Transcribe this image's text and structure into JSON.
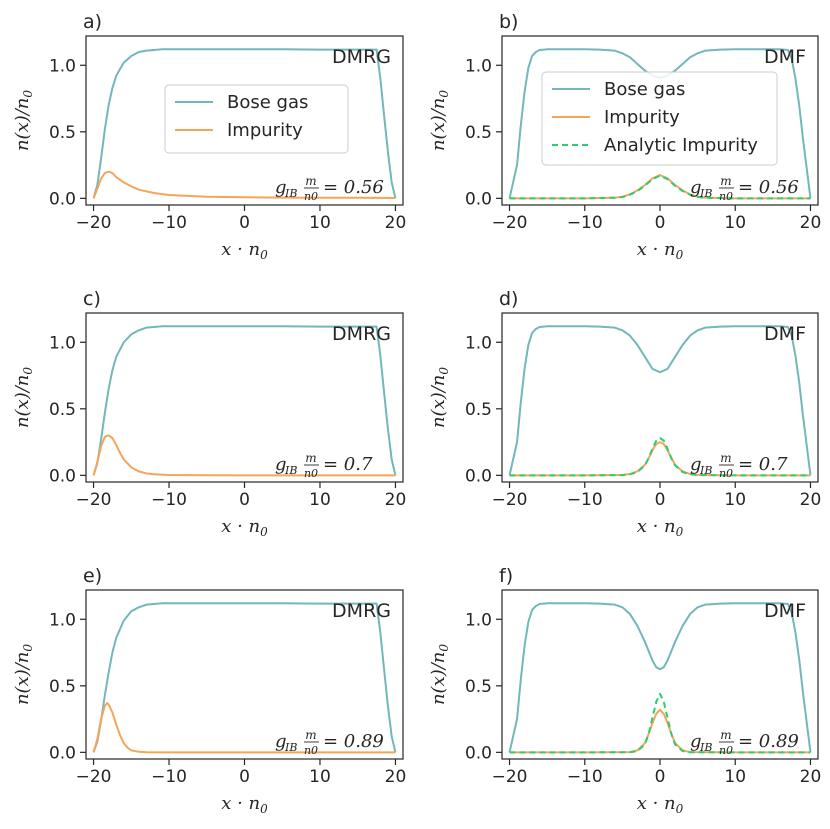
{
  "colors": {
    "bose": "#72b7b9",
    "impurity": "#f5a55a",
    "analytic": "#2ecc71",
    "axis": "#262626",
    "text": "#262626"
  },
  "chart_data": [
    {
      "type": "line",
      "panel_label": "a)",
      "method": "DMRG",
      "coupling_label": "g_IB m/n0 = 0.56",
      "coupling_prefix": "g",
      "coupling_sub": "IB",
      "coupling_frac_num": "m",
      "coupling_frac_den": "n0",
      "coupling_value": "= 0.56",
      "xlabel": "x · n0",
      "ylabel": "n(x)/n0",
      "xlim": [
        -21,
        21
      ],
      "ylim": [
        -0.05,
        1.22
      ],
      "xticks": [
        -20,
        -10,
        0,
        10,
        20
      ],
      "xtick_labels": [
        "−20",
        "−10",
        "0",
        "10",
        "20"
      ],
      "yticks": [
        0.0,
        0.5,
        1.0
      ],
      "ytick_labels": [
        "0.0",
        "0.5",
        "1.0"
      ],
      "legend": [
        "Bose gas",
        "Impurity"
      ],
      "legend_position": "center",
      "series": [
        {
          "name": "Bose gas",
          "x": [
            -20,
            -19.5,
            -19,
            -18.5,
            -18,
            -17.5,
            -17,
            -16,
            -15,
            -14,
            -13,
            -12,
            -11,
            -10,
            -8,
            -5,
            0,
            5,
            10,
            12,
            14,
            16,
            17,
            17.5,
            18,
            18.5,
            19,
            19.5,
            20
          ],
          "y": [
            0,
            0.1,
            0.3,
            0.52,
            0.7,
            0.83,
            0.92,
            1.02,
            1.07,
            1.1,
            1.11,
            1.115,
            1.12,
            1.12,
            1.12,
            1.12,
            1.12,
            1.12,
            1.118,
            1.118,
            1.118,
            1.118,
            1.118,
            1.118,
            0.9,
            0.62,
            0.35,
            0.12,
            0
          ]
        },
        {
          "name": "Impurity",
          "x": [
            -20,
            -19.5,
            -19,
            -18.5,
            -18,
            -17.5,
            -17,
            -16,
            -15,
            -14,
            -12,
            -10,
            -5,
            0,
            5,
            10,
            15,
            20
          ],
          "y": [
            0,
            0.07,
            0.15,
            0.19,
            0.2,
            0.19,
            0.16,
            0.12,
            0.09,
            0.065,
            0.04,
            0.025,
            0.012,
            0.008,
            0.005,
            0.004,
            0.004,
            0.003
          ]
        }
      ]
    },
    {
      "type": "line",
      "panel_label": "b)",
      "method": "DMF",
      "coupling_label": "g_IB m/n0 = 0.56",
      "coupling_prefix": "g",
      "coupling_sub": "IB",
      "coupling_frac_num": "m",
      "coupling_frac_den": "n0",
      "coupling_value": "= 0.56",
      "xlabel": "x · n0",
      "ylabel": "n(x)/n0",
      "xlim": [
        -21,
        21
      ],
      "ylim": [
        -0.05,
        1.22
      ],
      "xticks": [
        -20,
        -10,
        0,
        10,
        20
      ],
      "xtick_labels": [
        "−20",
        "−10",
        "0",
        "10",
        "20"
      ],
      "yticks": [
        0.0,
        0.5,
        1.0
      ],
      "ytick_labels": [
        "0.0",
        "0.5",
        "1.0"
      ],
      "legend": [
        "Bose gas",
        "Impurity",
        "Analytic Impurity"
      ],
      "legend_position": "top-right",
      "series": [
        {
          "name": "Bose gas",
          "x": [
            -20,
            -19,
            -18.5,
            -18,
            -17.5,
            -17,
            -16.5,
            -16,
            -15,
            -13,
            -10,
            -8,
            -6,
            -5,
            -4,
            -3,
            -2,
            -1,
            0,
            1,
            2,
            3,
            4,
            5,
            6,
            8,
            10,
            13,
            15,
            16,
            17,
            17.5,
            18,
            18.5,
            19,
            20
          ],
          "y": [
            0,
            0.25,
            0.55,
            0.8,
            0.98,
            1.07,
            1.1,
            1.115,
            1.12,
            1.12,
            1.12,
            1.118,
            1.11,
            1.09,
            1.06,
            1.01,
            0.96,
            0.92,
            0.905,
            0.92,
            0.96,
            1.01,
            1.06,
            1.09,
            1.11,
            1.118,
            1.12,
            1.12,
            1.12,
            1.12,
            1.115,
            1.05,
            0.9,
            0.7,
            0.45,
            0
          ]
        },
        {
          "name": "Impurity",
          "x": [
            -20,
            -10,
            -6,
            -5,
            -4,
            -3,
            -2,
            -1,
            0,
            1,
            2,
            3,
            4,
            5,
            6,
            10,
            20
          ],
          "y": [
            0,
            0,
            0.005,
            0.012,
            0.03,
            0.06,
            0.1,
            0.15,
            0.175,
            0.15,
            0.1,
            0.06,
            0.03,
            0.012,
            0.005,
            0,
            0
          ]
        },
        {
          "name": "Analytic Impurity",
          "x": [
            -20,
            -10,
            -6,
            -5,
            -4,
            -3,
            -2,
            -1,
            0,
            1,
            2,
            3,
            4,
            5,
            6,
            10,
            20
          ],
          "y": [
            0,
            0,
            0.004,
            0.01,
            0.027,
            0.055,
            0.095,
            0.145,
            0.17,
            0.145,
            0.095,
            0.055,
            0.027,
            0.01,
            0.004,
            0,
            0
          ]
        }
      ]
    },
    {
      "type": "line",
      "panel_label": "c)",
      "method": "DMRG",
      "coupling_label": "g_IB m/n0 = 0.7",
      "coupling_prefix": "g",
      "coupling_sub": "IB",
      "coupling_frac_num": "m",
      "coupling_frac_den": "n0",
      "coupling_value": "= 0.7",
      "xlabel": "x · n0",
      "ylabel": "n(x)/n0",
      "xlim": [
        -21,
        21
      ],
      "ylim": [
        -0.05,
        1.22
      ],
      "xticks": [
        -20,
        -10,
        0,
        10,
        20
      ],
      "xtick_labels": [
        "−20",
        "−10",
        "0",
        "10",
        "20"
      ],
      "yticks": [
        0.0,
        0.5,
        1.0
      ],
      "ytick_labels": [
        "0.0",
        "0.5",
        "1.0"
      ],
      "legend": [],
      "series": [
        {
          "name": "Bose gas",
          "x": [
            -20,
            -19.5,
            -19,
            -18.5,
            -18,
            -17.5,
            -17,
            -16,
            -15,
            -14,
            -13,
            -12,
            -11,
            -10,
            -8,
            -5,
            0,
            5,
            10,
            12,
            14,
            16,
            17,
            17.5,
            18,
            18.5,
            19,
            19.5,
            20
          ],
          "y": [
            0,
            0.09,
            0.27,
            0.47,
            0.65,
            0.79,
            0.89,
            1.0,
            1.06,
            1.09,
            1.11,
            1.115,
            1.12,
            1.12,
            1.12,
            1.12,
            1.12,
            1.12,
            1.118,
            1.118,
            1.118,
            1.118,
            1.118,
            1.118,
            0.9,
            0.62,
            0.35,
            0.12,
            0
          ]
        },
        {
          "name": "Impurity",
          "x": [
            -20,
            -19.5,
            -19,
            -18.5,
            -18,
            -17.5,
            -17,
            -16.5,
            -16,
            -15,
            -14,
            -13,
            -12,
            -10,
            -5,
            0,
            5,
            10,
            20
          ],
          "y": [
            0,
            0.1,
            0.22,
            0.29,
            0.3,
            0.28,
            0.23,
            0.17,
            0.12,
            0.06,
            0.03,
            0.015,
            0.008,
            0.003,
            0.001,
            0,
            0,
            0,
            0
          ]
        }
      ]
    },
    {
      "type": "line",
      "panel_label": "d)",
      "method": "DMF",
      "coupling_label": "g_IB m/n0 = 0.7",
      "coupling_prefix": "g",
      "coupling_sub": "IB",
      "coupling_frac_num": "m",
      "coupling_frac_den": "n0",
      "coupling_value": "= 0.7",
      "xlabel": "x · n0",
      "ylabel": "n(x)/n0",
      "xlim": [
        -21,
        21
      ],
      "ylim": [
        -0.05,
        1.22
      ],
      "xticks": [
        -20,
        -10,
        0,
        10,
        20
      ],
      "xtick_labels": [
        "−20",
        "−10",
        "0",
        "10",
        "20"
      ],
      "yticks": [
        0.0,
        0.5,
        1.0
      ],
      "ytick_labels": [
        "0.0",
        "0.5",
        "1.0"
      ],
      "legend": [],
      "series": [
        {
          "name": "Bose gas",
          "x": [
            -20,
            -19,
            -18.5,
            -18,
            -17.5,
            -17,
            -16.5,
            -16,
            -15,
            -13,
            -10,
            -8,
            -6,
            -5,
            -4,
            -3,
            -2,
            -1,
            0,
            1,
            2,
            3,
            4,
            5,
            6,
            8,
            10,
            13,
            15,
            16,
            17,
            17.5,
            18,
            18.5,
            19,
            20
          ],
          "y": [
            0,
            0.25,
            0.55,
            0.8,
            0.98,
            1.07,
            1.1,
            1.115,
            1.12,
            1.12,
            1.12,
            1.118,
            1.11,
            1.09,
            1.05,
            0.98,
            0.89,
            0.8,
            0.775,
            0.8,
            0.89,
            0.98,
            1.05,
            1.09,
            1.11,
            1.118,
            1.12,
            1.12,
            1.12,
            1.12,
            1.115,
            1.05,
            0.9,
            0.7,
            0.45,
            0
          ]
        },
        {
          "name": "Impurity",
          "x": [
            -20,
            -10,
            -5,
            -4,
            -3,
            -2,
            -1.5,
            -1,
            -0.5,
            0,
            0.5,
            1,
            1.5,
            2,
            3,
            4,
            5,
            10,
            20
          ],
          "y": [
            0,
            0,
            0.003,
            0.01,
            0.03,
            0.08,
            0.13,
            0.19,
            0.235,
            0.25,
            0.235,
            0.19,
            0.13,
            0.08,
            0.03,
            0.01,
            0.003,
            0,
            0
          ]
        },
        {
          "name": "Analytic Impurity",
          "x": [
            -20,
            -10,
            -5,
            -4,
            -3,
            -2,
            -1.5,
            -1,
            -0.5,
            0,
            0.5,
            1,
            1.5,
            2,
            3,
            4,
            5,
            10,
            20
          ],
          "y": [
            0,
            0,
            0.002,
            0.008,
            0.025,
            0.075,
            0.13,
            0.2,
            0.26,
            0.28,
            0.26,
            0.2,
            0.13,
            0.075,
            0.025,
            0.008,
            0.002,
            0,
            0
          ]
        }
      ]
    },
    {
      "type": "line",
      "panel_label": "e)",
      "method": "DMRG",
      "coupling_label": "g_IB m/n0 = 0.89",
      "coupling_prefix": "g",
      "coupling_sub": "IB",
      "coupling_frac_num": "m",
      "coupling_frac_den": "n0",
      "coupling_value": "= 0.89",
      "xlabel": "x · n0",
      "ylabel": "n(x)/n0",
      "xlim": [
        -21,
        21
      ],
      "ylim": [
        -0.05,
        1.22
      ],
      "xticks": [
        -20,
        -10,
        0,
        10,
        20
      ],
      "xtick_labels": [
        "−20",
        "−10",
        "0",
        "10",
        "20"
      ],
      "yticks": [
        0.0,
        0.5,
        1.0
      ],
      "ytick_labels": [
        "0.0",
        "0.5",
        "1.0"
      ],
      "legend": [],
      "series": [
        {
          "name": "Bose gas",
          "x": [
            -20,
            -19.5,
            -19,
            -18.5,
            -18,
            -17.5,
            -17,
            -16,
            -15,
            -14,
            -13,
            -12,
            -11,
            -10,
            -8,
            -5,
            0,
            5,
            10,
            12,
            14,
            16,
            17,
            17.5,
            18,
            18.5,
            19,
            19.5,
            20
          ],
          "y": [
            0,
            0.08,
            0.24,
            0.43,
            0.6,
            0.75,
            0.86,
            0.99,
            1.06,
            1.09,
            1.11,
            1.115,
            1.12,
            1.12,
            1.12,
            1.12,
            1.12,
            1.12,
            1.118,
            1.118,
            1.118,
            1.118,
            1.118,
            1.118,
            0.9,
            0.62,
            0.35,
            0.12,
            0
          ]
        },
        {
          "name": "Impurity",
          "x": [
            -20,
            -19.5,
            -19,
            -18.5,
            -18.2,
            -18,
            -17.5,
            -17,
            -16.5,
            -16,
            -15.5,
            -15,
            -14,
            -13,
            -10,
            -5,
            0,
            5,
            10,
            20
          ],
          "y": [
            0,
            0.1,
            0.25,
            0.35,
            0.37,
            0.36,
            0.3,
            0.21,
            0.13,
            0.07,
            0.035,
            0.015,
            0.004,
            0.001,
            0,
            0,
            0,
            0,
            0,
            0
          ]
        }
      ]
    },
    {
      "type": "line",
      "panel_label": "f)",
      "method": "DMF",
      "coupling_label": "g_IB m/n0 = 0.89",
      "coupling_prefix": "g",
      "coupling_sub": "IB",
      "coupling_frac_num": "m",
      "coupling_frac_den": "n0",
      "coupling_value": "= 0.89",
      "xlabel": "x · n0",
      "ylabel": "n(x)/n0",
      "xlim": [
        -21,
        21
      ],
      "ylim": [
        -0.05,
        1.22
      ],
      "xticks": [
        -20,
        -10,
        0,
        10,
        20
      ],
      "xtick_labels": [
        "−20",
        "−10",
        "0",
        "10",
        "20"
      ],
      "yticks": [
        0.0,
        0.5,
        1.0
      ],
      "ytick_labels": [
        "0.0",
        "0.5",
        "1.0"
      ],
      "legend": [],
      "series": [
        {
          "name": "Bose gas",
          "x": [
            -20,
            -19,
            -18.5,
            -18,
            -17.5,
            -17,
            -16.5,
            -16,
            -15,
            -13,
            -10,
            -8,
            -6,
            -5,
            -4,
            -3,
            -2,
            -1.5,
            -1,
            -0.5,
            0,
            0.5,
            1,
            1.5,
            2,
            3,
            4,
            5,
            6,
            8,
            10,
            13,
            15,
            16,
            17,
            17.5,
            18,
            18.5,
            19,
            20
          ],
          "y": [
            0,
            0.25,
            0.55,
            0.8,
            0.98,
            1.07,
            1.1,
            1.115,
            1.12,
            1.12,
            1.12,
            1.118,
            1.11,
            1.09,
            1.04,
            0.95,
            0.83,
            0.76,
            0.69,
            0.64,
            0.625,
            0.64,
            0.69,
            0.76,
            0.83,
            0.95,
            1.04,
            1.09,
            1.11,
            1.118,
            1.12,
            1.12,
            1.12,
            1.12,
            1.115,
            1.05,
            0.9,
            0.7,
            0.45,
            0
          ]
        },
        {
          "name": "Impurity",
          "x": [
            -20,
            -10,
            -4,
            -3,
            -2,
            -1.5,
            -1,
            -0.5,
            0,
            0.5,
            1,
            1.5,
            2,
            3,
            4,
            10,
            20
          ],
          "y": [
            0,
            0,
            0.002,
            0.015,
            0.07,
            0.14,
            0.22,
            0.29,
            0.32,
            0.29,
            0.22,
            0.14,
            0.07,
            0.015,
            0.002,
            0,
            0
          ]
        },
        {
          "name": "Analytic Impurity",
          "x": [
            -20,
            -10,
            -4,
            -3,
            -2,
            -1.5,
            -1,
            -0.5,
            0,
            0.5,
            1,
            1.5,
            2,
            3,
            4,
            10,
            20
          ],
          "y": [
            0,
            0,
            0.001,
            0.01,
            0.06,
            0.14,
            0.26,
            0.38,
            0.44,
            0.38,
            0.26,
            0.14,
            0.06,
            0.01,
            0.001,
            0,
            0
          ]
        }
      ]
    }
  ]
}
